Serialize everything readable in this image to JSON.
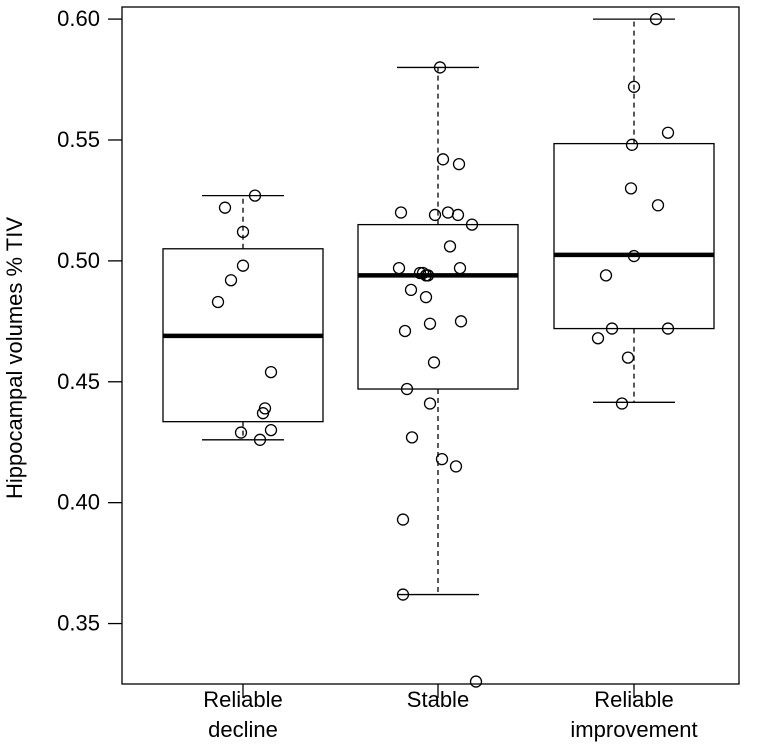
{
  "chart_data": {
    "type": "box",
    "ylabel": "Hippocampal volumes % TIV",
    "xlabel": "",
    "ylim": [
      0.325,
      0.605
    ],
    "yticks": [
      "0.35",
      "0.40",
      "0.45",
      "0.50",
      "0.55",
      "0.60"
    ],
    "ytick_values": [
      0.35,
      0.4,
      0.45,
      0.5,
      0.55,
      0.6
    ],
    "grid": false,
    "colors": {
      "stroke": "#000000",
      "background": "#ffffff"
    },
    "categories": [
      {
        "label_lines": [
          "Reliable",
          "decline"
        ],
        "box": {
          "whisker_low": 0.426,
          "q1": 0.4335,
          "median": 0.469,
          "q3": 0.505,
          "whisker_high": 0.527
        },
        "points": [
          0.527,
          0.522,
          0.512,
          0.498,
          0.492,
          0.483,
          0.454,
          0.439,
          0.437,
          0.43,
          0.429,
          0.426
        ]
      },
      {
        "label_lines": [
          "Stable"
        ],
        "box": {
          "whisker_low": 0.362,
          "q1": 0.447,
          "median": 0.494,
          "q3": 0.515,
          "whisker_high": 0.58
        },
        "points": [
          0.58,
          0.542,
          0.54,
          0.52,
          0.52,
          0.519,
          0.519,
          0.515,
          0.506,
          0.497,
          0.497,
          0.495,
          0.495,
          0.494,
          0.494,
          0.488,
          0.485,
          0.475,
          0.474,
          0.471,
          0.458,
          0.447,
          0.441,
          0.427,
          0.418,
          0.415,
          0.393,
          0.362,
          0.326
        ]
      },
      {
        "label_lines": [
          "Reliable",
          "improvement"
        ],
        "box": {
          "whisker_low": 0.4415,
          "q1": 0.472,
          "median": 0.5025,
          "q3": 0.5485,
          "whisker_high": 0.6
        },
        "points": [
          0.6,
          0.572,
          0.553,
          0.548,
          0.53,
          0.523,
          0.502,
          0.494,
          0.472,
          0.472,
          0.468,
          0.46,
          0.441
        ]
      }
    ]
  }
}
